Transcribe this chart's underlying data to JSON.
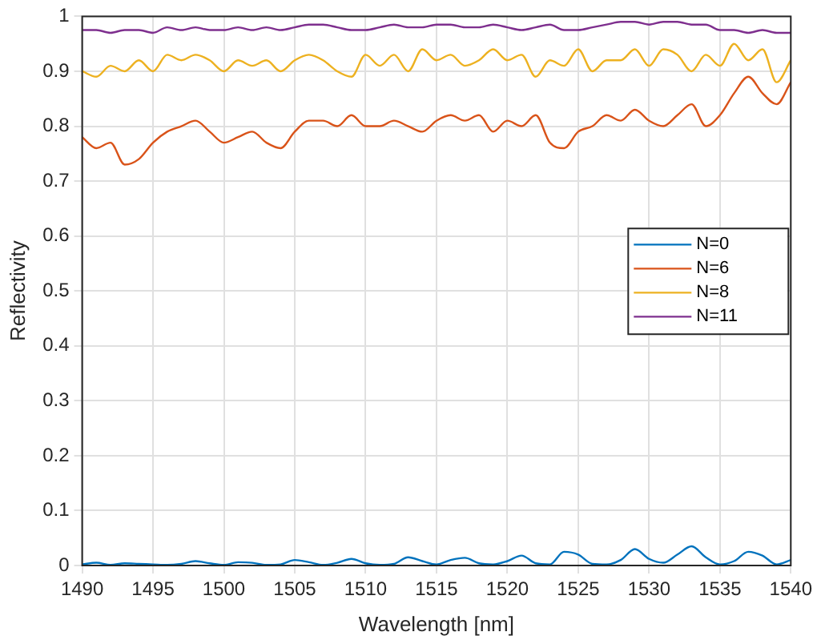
{
  "chart_data": {
    "type": "line",
    "xlabel": "Wavelength [nm]",
    "ylabel": "Reflectivity",
    "x": [
      1490,
      1491,
      1492,
      1493,
      1494,
      1495,
      1496,
      1497,
      1498,
      1499,
      1500,
      1501,
      1502,
      1503,
      1504,
      1505,
      1506,
      1507,
      1508,
      1509,
      1510,
      1511,
      1512,
      1513,
      1514,
      1515,
      1516,
      1517,
      1518,
      1519,
      1520,
      1521,
      1522,
      1523,
      1524,
      1525,
      1526,
      1527,
      1528,
      1529,
      1530,
      1531,
      1532,
      1533,
      1534,
      1535,
      1536,
      1537,
      1538,
      1539,
      1540
    ],
    "series": [
      {
        "name": "N=0",
        "color": "#0072bd",
        "values": [
          0.002,
          0.005,
          0.001,
          0.004,
          0.003,
          0.002,
          0.001,
          0.003,
          0.008,
          0.004,
          0.001,
          0.006,
          0.005,
          0.001,
          0.002,
          0.01,
          0.006,
          0.001,
          0.005,
          0.012,
          0.004,
          0.001,
          0.003,
          0.015,
          0.008,
          0.002,
          0.01,
          0.014,
          0.004,
          0.002,
          0.008,
          0.018,
          0.004,
          0.002,
          0.025,
          0.02,
          0.003,
          0.002,
          0.01,
          0.03,
          0.012,
          0.005,
          0.02,
          0.035,
          0.015,
          0.002,
          0.008,
          0.025,
          0.018,
          0.002,
          0.01
        ]
      },
      {
        "name": "N=6",
        "color": "#d95319",
        "values": [
          0.78,
          0.76,
          0.77,
          0.73,
          0.74,
          0.77,
          0.79,
          0.8,
          0.81,
          0.79,
          0.77,
          0.78,
          0.79,
          0.77,
          0.76,
          0.79,
          0.81,
          0.81,
          0.8,
          0.82,
          0.8,
          0.8,
          0.81,
          0.8,
          0.79,
          0.81,
          0.82,
          0.81,
          0.82,
          0.79,
          0.81,
          0.8,
          0.82,
          0.77,
          0.76,
          0.79,
          0.8,
          0.82,
          0.81,
          0.83,
          0.81,
          0.8,
          0.82,
          0.84,
          0.8,
          0.82,
          0.86,
          0.89,
          0.86,
          0.84,
          0.88
        ]
      },
      {
        "name": "N=8",
        "color": "#edb120",
        "values": [
          0.9,
          0.89,
          0.91,
          0.9,
          0.92,
          0.9,
          0.93,
          0.92,
          0.93,
          0.92,
          0.9,
          0.92,
          0.91,
          0.92,
          0.9,
          0.92,
          0.93,
          0.92,
          0.9,
          0.89,
          0.93,
          0.91,
          0.93,
          0.9,
          0.94,
          0.92,
          0.93,
          0.91,
          0.92,
          0.94,
          0.92,
          0.93,
          0.89,
          0.92,
          0.91,
          0.94,
          0.9,
          0.92,
          0.92,
          0.94,
          0.91,
          0.94,
          0.93,
          0.9,
          0.93,
          0.91,
          0.95,
          0.92,
          0.94,
          0.88,
          0.92
        ]
      },
      {
        "name": "N=11",
        "color": "#7e2f8e",
        "values": [
          0.975,
          0.975,
          0.97,
          0.975,
          0.975,
          0.97,
          0.98,
          0.975,
          0.98,
          0.975,
          0.975,
          0.98,
          0.975,
          0.98,
          0.975,
          0.98,
          0.985,
          0.985,
          0.98,
          0.975,
          0.975,
          0.98,
          0.985,
          0.98,
          0.98,
          0.985,
          0.985,
          0.98,
          0.98,
          0.985,
          0.98,
          0.975,
          0.98,
          0.985,
          0.975,
          0.975,
          0.98,
          0.985,
          0.99,
          0.99,
          0.985,
          0.99,
          0.99,
          0.985,
          0.985,
          0.975,
          0.975,
          0.97,
          0.975,
          0.97,
          0.97
        ]
      }
    ],
    "xlim": [
      1490,
      1540
    ],
    "xticks": [
      1490,
      1495,
      1500,
      1505,
      1510,
      1515,
      1520,
      1525,
      1530,
      1535,
      1540
    ],
    "ylim": [
      0,
      1
    ],
    "yticks": [
      0,
      0.1,
      0.2,
      0.3,
      0.4,
      0.5,
      0.6,
      0.7,
      0.8,
      0.9,
      1
    ],
    "grid": true,
    "legend": "right",
    "marker": "none",
    "line_style": "solid"
  }
}
